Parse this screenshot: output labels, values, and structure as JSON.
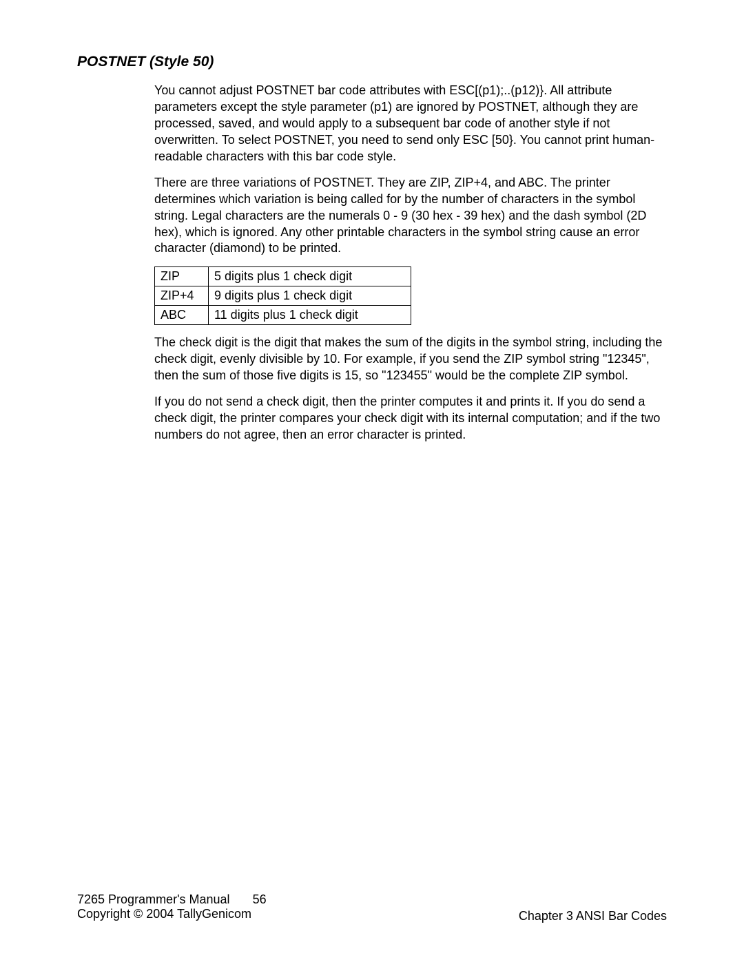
{
  "heading": "POSTNET (Style 50)",
  "paragraphs": {
    "p1": "You cannot adjust POSTNET bar code attributes with ESC[(p1);..(p12)}.  All attribute parameters except the style parameter (p1) are ignored by POSTNET, although they are processed, saved, and would apply to a subsequent bar code of another style if not overwritten.  To select POSTNET, you need to send only ESC [50}. You cannot print human-readable characters with this bar code style.",
    "p2": "There are three variations of POSTNET. They are ZIP, ZIP+4, and ABC.  The printer determines which variation is being called for by the number of characters in the symbol string. Legal characters are the numerals 0 - 9 (30 hex - 39 hex) and the dash symbol (2D hex), which is ignored. Any other printable characters in the symbol string cause an error character (diamond) to be printed.",
    "p3": "The check digit is the digit that makes the sum of the digits in the symbol string, including the check digit, evenly divisible by 10. For example, if you send the ZIP symbol string \"12345\", then the sum of those five digits is 15, so \"123455\" would be the complete ZIP symbol.",
    "p4": "If you do not send a check digit, then the printer computes it and prints it. If you do send a check digit, the printer compares your check digit with its internal computation; and if the two numbers do not agree, then an error character is printed."
  },
  "table": {
    "rows": [
      {
        "c1": "ZIP",
        "c2": "5 digits plus 1 check digit"
      },
      {
        "c1": "ZIP+4",
        "c2": "9 digits plus 1 check digit"
      },
      {
        "c1": "ABC",
        "c2": "11 digits plus 1 check digit"
      }
    ]
  },
  "footer": {
    "manual_title": "7265 Programmer's Manual",
    "page_number": "56",
    "copyright": "Copyright © 2004 TallyGenicom",
    "chapter": "Chapter 3 ANSI Bar Codes"
  }
}
